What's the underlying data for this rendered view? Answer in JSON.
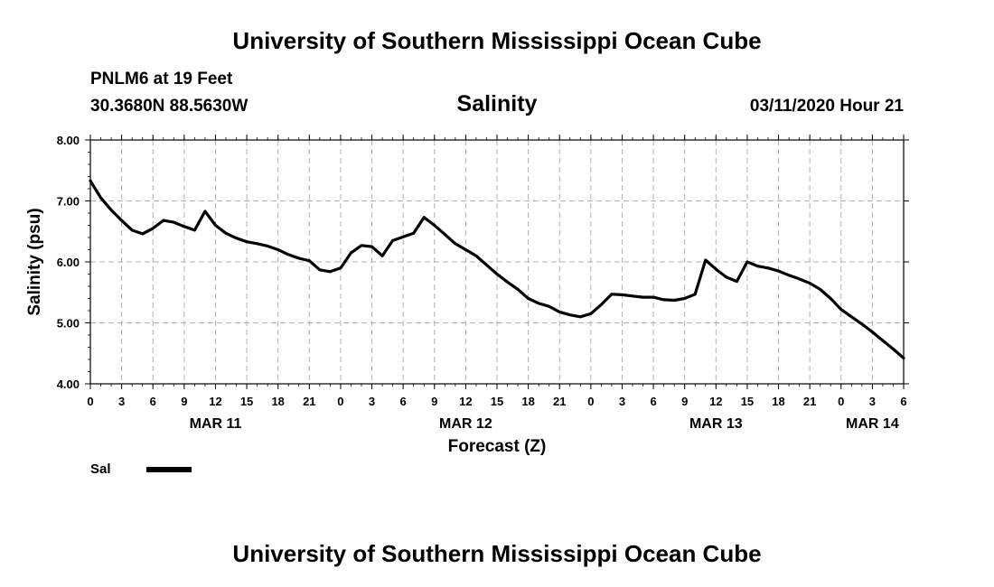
{
  "header": {
    "title": "University of Southern Mississippi Ocean Cube",
    "station": "PNLM6 at 19 Feet",
    "coordinates": "30.3680N 88.5630W",
    "datetime": "03/11/2020 Hour 21"
  },
  "footer": {
    "title": "University of Southern Mississippi Ocean Cube"
  },
  "legend": {
    "label": "Sal",
    "color": "#000000"
  },
  "chart_data": {
    "type": "line",
    "title": "Salinity",
    "xlabel": "Forecast (Z)",
    "ylabel": "Salinity (psu)",
    "ylim": [
      4.0,
      8.0
    ],
    "xlim": [
      0,
      78
    ],
    "x_unit": "hours from 00Z MAR 11",
    "grid": true,
    "y_ticks": [
      {
        "value": 4.0,
        "label": "4.00"
      },
      {
        "value": 5.0,
        "label": "5.00"
      },
      {
        "value": 6.0,
        "label": "6.00"
      },
      {
        "value": 7.0,
        "label": "7.00"
      },
      {
        "value": 8.0,
        "label": "8.00"
      }
    ],
    "x_ticks": [
      {
        "value": 0,
        "label": "0"
      },
      {
        "value": 3,
        "label": "3"
      },
      {
        "value": 6,
        "label": "6"
      },
      {
        "value": 9,
        "label": "9"
      },
      {
        "value": 12,
        "label": "12"
      },
      {
        "value": 15,
        "label": "15"
      },
      {
        "value": 18,
        "label": "18"
      },
      {
        "value": 21,
        "label": "21"
      },
      {
        "value": 24,
        "label": "0"
      },
      {
        "value": 27,
        "label": "3"
      },
      {
        "value": 30,
        "label": "6"
      },
      {
        "value": 33,
        "label": "9"
      },
      {
        "value": 36,
        "label": "12"
      },
      {
        "value": 39,
        "label": "15"
      },
      {
        "value": 42,
        "label": "18"
      },
      {
        "value": 45,
        "label": "21"
      },
      {
        "value": 48,
        "label": "0"
      },
      {
        "value": 51,
        "label": "3"
      },
      {
        "value": 54,
        "label": "6"
      },
      {
        "value": 57,
        "label": "9"
      },
      {
        "value": 60,
        "label": "12"
      },
      {
        "value": 63,
        "label": "15"
      },
      {
        "value": 66,
        "label": "18"
      },
      {
        "value": 69,
        "label": "21"
      },
      {
        "value": 72,
        "label": "0"
      },
      {
        "value": 75,
        "label": "3"
      },
      {
        "value": 78,
        "label": "6"
      }
    ],
    "day_labels": [
      {
        "value": 12,
        "label": "MAR 11"
      },
      {
        "value": 36,
        "label": "MAR 12"
      },
      {
        "value": 60,
        "label": "MAR 13"
      },
      {
        "value": 75,
        "label": "MAR 14"
      }
    ],
    "series": [
      {
        "name": "Sal",
        "color": "#000000",
        "x": [
          0,
          1,
          2,
          3,
          4,
          5,
          6,
          7,
          8,
          9,
          10,
          11,
          12,
          13,
          14,
          15,
          16,
          17,
          18,
          19,
          20,
          21,
          22,
          23,
          24,
          25,
          26,
          27,
          28,
          29,
          30,
          31,
          32,
          33,
          34,
          35,
          36,
          37,
          38,
          39,
          40,
          41,
          42,
          43,
          44,
          45,
          46,
          47,
          48,
          49,
          50,
          51,
          52,
          53,
          54,
          55,
          56,
          57,
          58,
          59,
          60,
          61,
          62,
          63,
          64,
          65,
          66,
          67,
          68,
          69,
          70,
          71,
          72,
          73,
          74,
          75,
          76,
          77,
          78
        ],
        "values": [
          7.33,
          7.05,
          6.85,
          6.68,
          6.52,
          6.46,
          6.55,
          6.68,
          6.65,
          6.58,
          6.52,
          6.83,
          6.6,
          6.47,
          6.39,
          6.33,
          6.3,
          6.26,
          6.2,
          6.12,
          6.06,
          6.02,
          5.87,
          5.84,
          5.9,
          6.15,
          6.27,
          6.25,
          6.1,
          6.35,
          6.41,
          6.47,
          6.73,
          6.6,
          6.45,
          6.3,
          6.2,
          6.1,
          5.95,
          5.8,
          5.67,
          5.55,
          5.4,
          5.32,
          5.27,
          5.18,
          5.13,
          5.1,
          5.15,
          5.3,
          5.47,
          5.46,
          5.44,
          5.42,
          5.42,
          5.38,
          5.37,
          5.4,
          5.47,
          6.03,
          5.88,
          5.75,
          5.68,
          6.0,
          5.93,
          5.9,
          5.85,
          5.78,
          5.72,
          5.65,
          5.55,
          5.4,
          5.22,
          5.1,
          4.98,
          4.85,
          4.71,
          4.57,
          4.42
        ]
      }
    ]
  }
}
